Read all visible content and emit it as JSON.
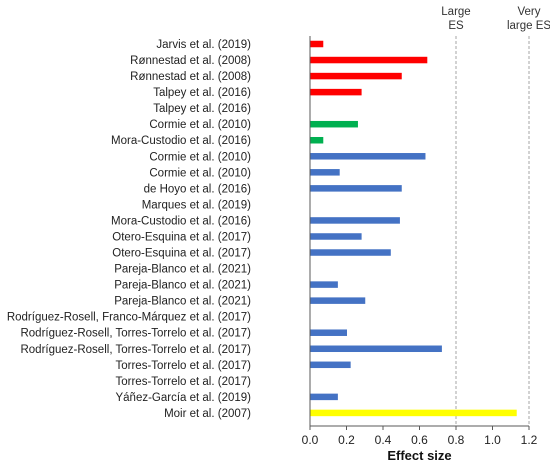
{
  "chart_data": {
    "type": "bar",
    "orientation": "horizontal",
    "xlabel": "Effect size",
    "xlim": [
      0,
      1.2
    ],
    "xticks": [
      "0.0",
      "0.2",
      "0.4",
      "0.6",
      "0.8",
      "1.0",
      "1.2"
    ],
    "grid": false,
    "reference_lines": [
      {
        "value": 0.8,
        "label_lines": [
          "Large",
          "ES"
        ],
        "style": "dashed"
      },
      {
        "value": 1.2,
        "label_lines": [
          "Very",
          "large ES"
        ],
        "style": "dashed"
      }
    ],
    "categories": [
      "Jarvis et al. (2019)",
      "Rønnestad et al. (2008)",
      "Rønnestad et al. (2008)",
      "Talpey et al. (2016)",
      "Talpey et al. (2016)",
      "Cormie et al. (2010)",
      "Mora-Custodio et al. (2016)",
      "Cormie et al. (2010)",
      "Cormie et al. (2010)",
      "de Hoyo et al. (2016)",
      "Marques et al. (2019)",
      "Mora-Custodio et al. (2016)",
      "Otero-Esquina et al. (2017)",
      "Otero-Esquina et al. (2017)",
      "Pareja-Blanco et al. (2021)",
      "Pareja-Blanco et al. (2021)",
      "Pareja-Blanco et al. (2021)",
      "Rodríguez-Rosell, Franco-Márquez et al. (2017)",
      "Rodríguez-Rosell, Torres-Torrelo et al. (2017)",
      "Rodríguez-Rosell, Torres-Torrelo et al. (2017)",
      "Torres-Torrelo et al. (2017)",
      "Torres-Torrelo et al. (2017)",
      "Yáñez-García et al. (2019)",
      "Moir et al. (2007)"
    ],
    "values": [
      0.07,
      0.64,
      0.5,
      0.28,
      0.0,
      0.26,
      0.07,
      0.63,
      0.16,
      0.5,
      0.0,
      0.49,
      0.28,
      0.44,
      0.0,
      0.15,
      0.3,
      0.0,
      0.2,
      0.72,
      0.22,
      0.0,
      0.15,
      1.13
    ],
    "colors": [
      "#ff0000",
      "#ff0000",
      "#ff0000",
      "#ff0000",
      "#ff0000",
      "#00b050",
      "#00b050",
      "#4472c4",
      "#4472c4",
      "#4472c4",
      "#4472c4",
      "#4472c4",
      "#4472c4",
      "#4472c4",
      "#4472c4",
      "#4472c4",
      "#4472c4",
      "#4472c4",
      "#4472c4",
      "#4472c4",
      "#4472c4",
      "#4472c4",
      "#4472c4",
      "#ffff00"
    ]
  }
}
